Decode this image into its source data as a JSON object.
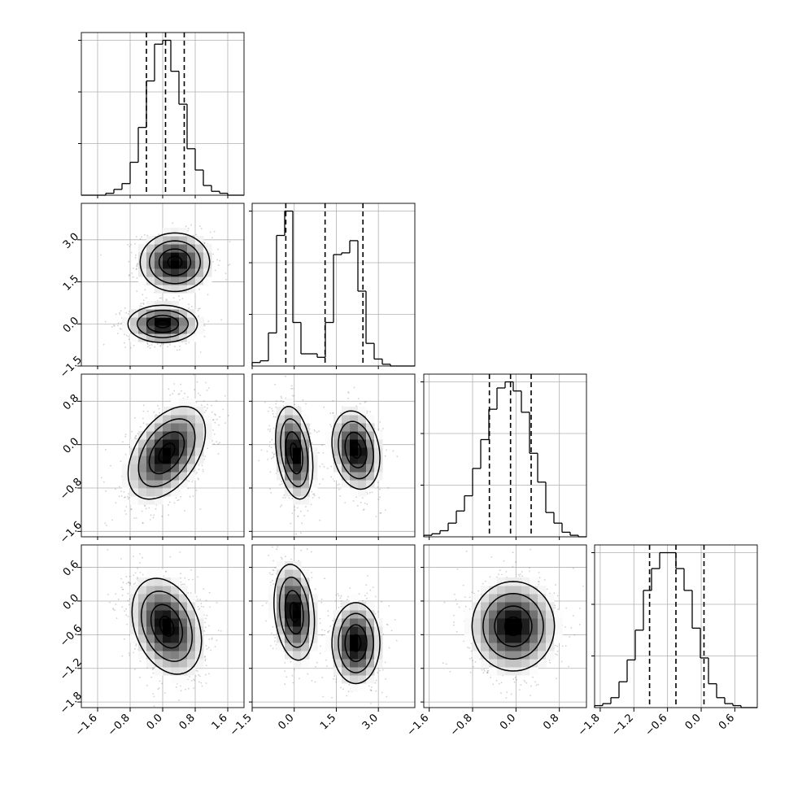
{
  "chart_data": {
    "type": "corner",
    "variables": 4,
    "bins": 20,
    "grid": true,
    "colors": {
      "line": "#000000",
      "grid": "#b0b0b0",
      "points": "#777777",
      "frame": "#000000"
    },
    "tick_labels": {
      "x": [
        [
          "−1.6",
          "−0.8",
          "0.0",
          "0.8",
          "1.6"
        ],
        [
          "−1.5",
          "0.0",
          "1.5",
          "3.0"
        ],
        [
          "−1.6",
          "−0.8",
          "0.0",
          "0.8"
        ],
        [
          "−1.8",
          "−1.2",
          "−0.6",
          "0.0",
          "0.6"
        ]
      ],
      "y": [
        [],
        [
          "−1.5",
          "0.0",
          "1.5",
          "3.0"
        ],
        [
          "−1.6",
          "−0.8",
          "0.0",
          "0.8"
        ],
        [
          "−1.8",
          "−1.2",
          "−0.6",
          "0.0",
          "0.6"
        ]
      ]
    },
    "ticks": [
      [
        -1.6,
        -0.8,
        0.0,
        0.8,
        1.6
      ],
      [
        -1.5,
        0.0,
        1.5,
        3.0
      ],
      [
        -1.6,
        -0.8,
        0.0,
        0.8
      ],
      [
        -1.8,
        -1.2,
        -0.6,
        0.0,
        0.6
      ]
    ],
    "ranges": [
      [
        -2.0,
        2.0
      ],
      [
        -1.5,
        4.3
      ],
      [
        -1.7,
        1.3
      ],
      [
        -1.9,
        1.0
      ]
    ],
    "histograms": [
      {
        "edges": [
          -2.0,
          2.0
        ],
        "counts": [
          0,
          0,
          0,
          1,
          3,
          6,
          17,
          35,
          59,
          78,
          80,
          64,
          47,
          24,
          13,
          5,
          2,
          1,
          0,
          0
        ],
        "quantiles": [
          -0.4,
          0.07,
          0.53
        ]
      },
      {
        "edges": [
          -1.5,
          4.3
        ],
        "counts": [
          2,
          3,
          19,
          75,
          89,
          25,
          7,
          7,
          5,
          25,
          64,
          65,
          72,
          43,
          13,
          4,
          1,
          0,
          0,
          0
        ],
        "quantiles": [
          -0.3,
          1.1,
          2.45
        ]
      },
      {
        "edges": [
          -1.7,
          1.3
        ],
        "counts": [
          1,
          2,
          4,
          9,
          17,
          27,
          45,
          64,
          84,
          98,
          102,
          96,
          82,
          55,
          36,
          16,
          9,
          3,
          1,
          0
        ],
        "quantiles": [
          -0.49,
          -0.1,
          0.28
        ]
      },
      {
        "edges": [
          -1.9,
          1.0
        ],
        "counts": [
          1,
          2,
          5,
          13,
          24,
          39,
          59,
          70,
          78,
          78,
          70,
          59,
          40,
          25,
          12,
          5,
          2,
          1,
          0,
          0
        ],
        "quantiles": [
          -0.92,
          -0.45,
          0.05
        ]
      }
    ],
    "pairs": [
      {
        "x": 0,
        "y": 1,
        "clusters": [
          {
            "mx": 0.3,
            "my": 2.2,
            "sx": 0.45,
            "sy": 0.55,
            "rho": 0.0,
            "w": 0.5
          },
          {
            "mx": 0.0,
            "my": 0.0,
            "sx": 0.45,
            "sy": 0.35,
            "rho": 0.0,
            "w": 0.5
          }
        ]
      },
      {
        "x": 0,
        "y": 2,
        "clusters": [
          {
            "mx": 0.1,
            "my": -0.15,
            "sx": 0.5,
            "sy": 0.45,
            "rho": 0.45,
            "w": 1.0
          }
        ]
      },
      {
        "x": 1,
        "y": 2,
        "clusters": [
          {
            "mx": 0.0,
            "my": -0.15,
            "sx": 0.35,
            "sy": 0.45,
            "rho": -0.3,
            "w": 0.5
          },
          {
            "mx": 2.2,
            "my": -0.1,
            "sx": 0.45,
            "sy": 0.38,
            "rho": -0.2,
            "w": 0.5
          }
        ]
      },
      {
        "x": 0,
        "y": 3,
        "clusters": [
          {
            "mx": 0.1,
            "my": -0.45,
            "sx": 0.45,
            "sy": 0.45,
            "rho": -0.3,
            "w": 1.0
          }
        ]
      },
      {
        "x": 1,
        "y": 3,
        "clusters": [
          {
            "mx": 0.0,
            "my": -0.2,
            "sx": 0.38,
            "sy": 0.45,
            "rho": -0.2,
            "w": 0.5
          },
          {
            "mx": 2.2,
            "my": -0.75,
            "sx": 0.45,
            "sy": 0.38,
            "rho": 0.0,
            "w": 0.5
          }
        ]
      },
      {
        "x": 2,
        "y": 3,
        "clusters": [
          {
            "mx": -0.05,
            "my": -0.45,
            "sx": 0.4,
            "sy": 0.42,
            "rho": 0.0,
            "w": 1.0
          }
        ]
      }
    ]
  }
}
